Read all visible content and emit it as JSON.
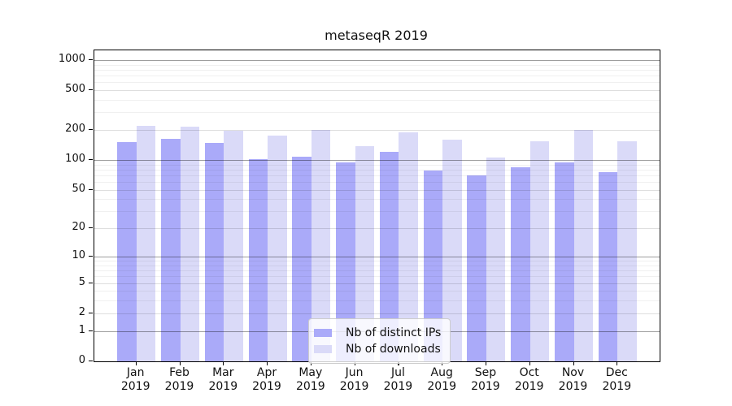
{
  "chart_data": {
    "type": "bar",
    "title": "metaseqR 2019",
    "year": "2019",
    "categories": [
      "Jan",
      "Feb",
      "Mar",
      "Apr",
      "May",
      "Jun",
      "Jul",
      "Aug",
      "Sep",
      "Oct",
      "Nov",
      "Dec"
    ],
    "series": [
      {
        "name": "Nb of distinct IPs",
        "key": "distinct-ips",
        "color": "#aaaaf9",
        "values": [
          151,
          163,
          148,
          102,
          107,
          95,
          121,
          79,
          70,
          85,
          94,
          75
        ]
      },
      {
        "name": "Nb of downloads",
        "key": "downloads",
        "color": "#dadaf8",
        "values": [
          220,
          215,
          196,
          176,
          200,
          137,
          189,
          160,
          105,
          154,
          201,
          154
        ]
      }
    ],
    "y_axis": {
      "scale": "log1p",
      "ticks": [
        0,
        1,
        2,
        5,
        10,
        20,
        50,
        100,
        200,
        500,
        1000
      ],
      "tick_labels": [
        "0",
        "1",
        "2",
        "5",
        "10",
        "20",
        "50",
        "100",
        "200",
        "500",
        "1000"
      ],
      "decade_ticks": [
        1,
        10,
        100,
        1000
      ],
      "minor_ticks": [
        3,
        4,
        6,
        7,
        8,
        9,
        30,
        40,
        60,
        70,
        80,
        90,
        300,
        400,
        600,
        700,
        800,
        900
      ],
      "ylim": [
        0,
        1250
      ]
    },
    "xlabel": "",
    "ylabel": "",
    "grid": true,
    "legend": {
      "position": "bottom-center"
    }
  }
}
